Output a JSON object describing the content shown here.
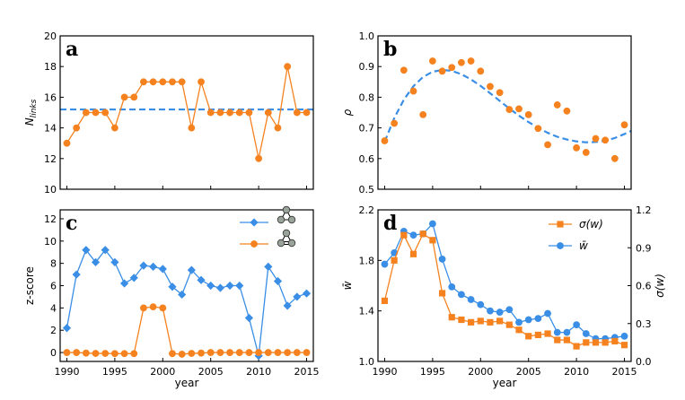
{
  "colors": {
    "blue": "#3a8ee6",
    "orange": "#f5821f",
    "motif_node": "#9aa39a"
  },
  "chart_data": [
    {
      "id": "a",
      "type": "line",
      "letter": "a",
      "xlabel": "",
      "ylabel": "N_links",
      "ylabel_main": "N",
      "ylabel_sub": "links",
      "xlim": [
        1989.3,
        2015.7
      ],
      "ylim": [
        10,
        20
      ],
      "yticks": [
        10,
        12,
        14,
        16,
        18,
        20
      ],
      "ytick_labels": [
        "10",
        "12",
        "14",
        "16",
        "18",
        "20"
      ],
      "xticks": [
        1990,
        1995,
        2000,
        2005,
        2010,
        2015
      ],
      "show_xtick_labels": false,
      "series": [
        {
          "name": "N_links",
          "color": "orange",
          "marker": "circle",
          "x": [
            1990,
            1991,
            1992,
            1993,
            1994,
            1995,
            1996,
            1997,
            1998,
            1999,
            2000,
            2001,
            2002,
            2003,
            2004,
            2005,
            2006,
            2007,
            2008,
            2009,
            2010,
            2011,
            2012,
            2013,
            2014,
            2015
          ],
          "y": [
            13,
            14,
            15,
            15,
            15,
            14,
            16,
            16,
            17,
            17,
            17,
            17,
            17,
            14,
            17,
            15,
            15,
            15,
            15,
            15,
            12,
            15,
            14,
            18,
            15,
            15
          ]
        }
      ],
      "hline": {
        "y": 15.2,
        "color": "blue",
        "dash": true
      }
    },
    {
      "id": "b",
      "type": "scatter",
      "letter": "b",
      "xlabel": "",
      "ylabel": "ρ",
      "xlim": [
        1989.3,
        2015.7
      ],
      "ylim": [
        0.5,
        1.0
      ],
      "yticks": [
        0.5,
        0.6,
        0.7,
        0.8,
        0.9,
        1.0
      ],
      "ytick_labels": [
        "0.5",
        "0.6",
        "0.7",
        "0.8",
        "0.9",
        "1.0"
      ],
      "xticks": [
        1990,
        1995,
        2000,
        2005,
        2010,
        2015
      ],
      "show_xtick_labels": false,
      "series": [
        {
          "name": "rho",
          "color": "orange",
          "marker": "circle",
          "line": false,
          "x": [
            1990,
            1991,
            1992,
            1993,
            1994,
            1995,
            1996,
            1997,
            1998,
            1999,
            2000,
            2001,
            2002,
            2003,
            2004,
            2005,
            2006,
            2007,
            2008,
            2009,
            2010,
            2011,
            2012,
            2013,
            2014,
            2015
          ],
          "y": [
            0.658,
            0.715,
            0.888,
            0.82,
            0.743,
            0.918,
            0.885,
            0.897,
            0.913,
            0.918,
            0.885,
            0.835,
            0.815,
            0.76,
            0.762,
            0.743,
            0.698,
            0.645,
            0.775,
            0.755,
            0.635,
            0.62,
            0.665,
            0.66,
            0.6,
            0.71
          ]
        }
      ],
      "fit": {
        "color": "blue",
        "dash": true,
        "x": [
          1990,
          1991,
          1992,
          1993,
          1994,
          1995,
          1996,
          1997,
          1998,
          1999,
          2000,
          2001,
          2002,
          2003,
          2004,
          2005,
          2006,
          2007,
          2008,
          2009,
          2010,
          2011,
          2012,
          2013,
          2014,
          2015,
          2015.7
        ],
        "y": [
          0.655,
          0.732,
          0.792,
          0.836,
          0.866,
          0.883,
          0.889,
          0.886,
          0.875,
          0.858,
          0.837,
          0.813,
          0.788,
          0.763,
          0.74,
          0.719,
          0.7,
          0.684,
          0.671,
          0.662,
          0.656,
          0.653,
          0.654,
          0.658,
          0.667,
          0.68,
          0.69
        ]
      }
    },
    {
      "id": "c",
      "type": "line",
      "letter": "c",
      "xlabel": "year",
      "ylabel": "z-score",
      "xlim": [
        1989.3,
        2015.7
      ],
      "ylim": [
        -0.8,
        12.8
      ],
      "yticks": [
        0,
        2,
        4,
        6,
        8,
        10,
        12
      ],
      "ytick_labels": [
        "0",
        "2",
        "4",
        "6",
        "8",
        "10",
        "12"
      ],
      "xticks": [
        1990,
        1995,
        2000,
        2005,
        2010,
        2015
      ],
      "xtick_labels": [
        "1990",
        "1995",
        "2000",
        "2005",
        "2010",
        "2015"
      ],
      "show_xtick_labels": true,
      "series": [
        {
          "name": "feed-forward loop",
          "color": "blue",
          "marker": "diamond",
          "x": [
            1990,
            1991,
            1992,
            1993,
            1994,
            1995,
            1996,
            1997,
            1998,
            1999,
            2000,
            2001,
            2002,
            2003,
            2004,
            2005,
            2006,
            2007,
            2008,
            2009,
            2010,
            2011,
            2012,
            2013,
            2014,
            2015
          ],
          "y": [
            2.2,
            7.0,
            9.2,
            8.1,
            9.2,
            8.1,
            6.2,
            6.7,
            7.8,
            7.7,
            7.5,
            5.9,
            5.2,
            7.4,
            6.5,
            6.0,
            5.8,
            6.0,
            6.0,
            3.1,
            -0.3,
            7.7,
            6.4,
            4.2,
            5.0,
            5.3
          ]
        },
        {
          "name": "reciprocal loop",
          "color": "orange",
          "marker": "circle",
          "x": [
            1990,
            1991,
            1992,
            1993,
            1994,
            1995,
            1996,
            1997,
            1998,
            1999,
            2000,
            2001,
            2002,
            2003,
            2004,
            2005,
            2006,
            2007,
            2008,
            2009,
            2010,
            2011,
            2012,
            2013,
            2014,
            2015
          ],
          "y": [
            0,
            0,
            -0.05,
            -0.08,
            -0.08,
            -0.1,
            -0.1,
            -0.1,
            4.0,
            4.1,
            4.0,
            -0.1,
            -0.15,
            -0.08,
            -0.05,
            0,
            0,
            0,
            0,
            0,
            0,
            0,
            0,
            0,
            0,
            0
          ]
        }
      ]
    },
    {
      "id": "d",
      "type": "line",
      "letter": "d",
      "xlabel": "year",
      "ylabel": "w̄",
      "ylabel_right": "σ(w)",
      "xlim": [
        1989.3,
        2015.7
      ],
      "ylim": [
        1.0,
        2.2
      ],
      "yticks": [
        1.0,
        1.4,
        1.8,
        2.2
      ],
      "ytick_labels": [
        "1.0",
        "1.4",
        "1.8",
        "2.2"
      ],
      "ylim_right": [
        0,
        1.2
      ],
      "yticks_right": [
        0,
        0.3,
        0.6,
        0.9,
        1.2
      ],
      "ytick_labels_right": [
        "0.0",
        "0.3",
        "0.6",
        "0.9",
        "1.2"
      ],
      "xticks": [
        1990,
        1995,
        2000,
        2005,
        2010,
        2015
      ],
      "xtick_labels": [
        "1990",
        "1995",
        "2000",
        "2005",
        "2010",
        "2015"
      ],
      "show_xtick_labels": true,
      "series": [
        {
          "name": "w̄",
          "legend": "w̄",
          "color": "blue",
          "marker": "circle",
          "axis": "left",
          "x": [
            1990,
            1991,
            1992,
            1993,
            1994,
            1995,
            1996,
            1997,
            1998,
            1999,
            2000,
            2001,
            2002,
            2003,
            2004,
            2005,
            2006,
            2007,
            2008,
            2009,
            2010,
            2011,
            2012,
            2013,
            2014,
            2015
          ],
          "y": [
            1.77,
            1.86,
            2.03,
            2.0,
            2.01,
            2.09,
            1.81,
            1.59,
            1.53,
            1.49,
            1.45,
            1.4,
            1.39,
            1.41,
            1.31,
            1.33,
            1.34,
            1.38,
            1.23,
            1.23,
            1.29,
            1.22,
            1.18,
            1.18,
            1.19,
            1.2
          ]
        },
        {
          "name": "σ(w)",
          "legend": "σ(w)",
          "color": "orange",
          "marker": "square",
          "axis": "right",
          "x": [
            1990,
            1991,
            1992,
            1993,
            1994,
            1995,
            1996,
            1997,
            1998,
            1999,
            2000,
            2001,
            2002,
            2003,
            2004,
            2005,
            2006,
            2007,
            2008,
            2009,
            2010,
            2011,
            2012,
            2013,
            2014,
            2015
          ],
          "y": [
            0.48,
            0.8,
            1.0,
            0.85,
            1.01,
            0.96,
            0.54,
            0.35,
            0.33,
            0.31,
            0.32,
            0.31,
            0.32,
            0.29,
            0.25,
            0.2,
            0.21,
            0.22,
            0.17,
            0.17,
            0.12,
            0.15,
            0.15,
            0.15,
            0.16,
            0.13
          ]
        }
      ],
      "legend_entries": [
        "σ(w)",
        "w̄"
      ]
    }
  ]
}
